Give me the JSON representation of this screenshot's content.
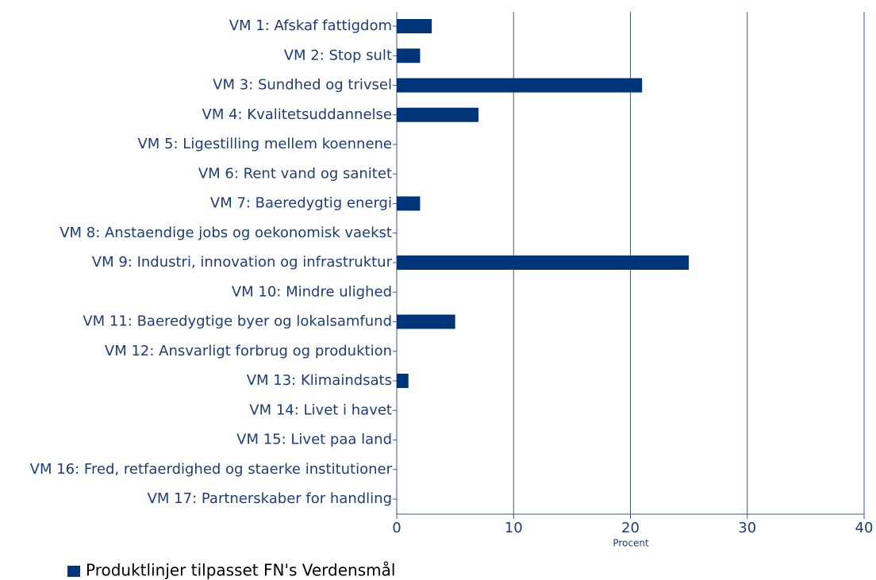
{
  "chart_data": {
    "type": "barh",
    "categories": [
      "VM 1: Afskaf fattigdom",
      "VM 2: Stop sult",
      "VM 3: Sundhed og trivsel",
      "VM 4: Kvalitetsuddannelse",
      "VM 5: Ligestilling mellem koennene",
      "VM 6: Rent vand og sanitet",
      "VM 7: Baeredygtig energi",
      "VM 8: Anstaendige jobs og oekonomisk vaekst",
      "VM 9: Industri, innovation og infrastruktur",
      "VM 10: Mindre ulighed",
      "VM 11: Baeredygtige byer og lokalsamfund",
      "VM 12: Ansvarligt forbrug og produktion",
      "VM 13: Klimaindsats",
      "VM 14: Livet i havet",
      "VM 15: Livet paa land",
      "VM 16: Fred, retfaerdighed og staerke institutioner",
      "VM 17: Partnerskaber for handling"
    ],
    "series": [
      {
        "name": "Produktlinjer tilpasset FN's Verdensmål",
        "color": "#003478",
        "values": [
          3,
          2,
          21,
          7,
          0,
          0,
          2,
          0,
          25,
          0,
          5,
          0,
          1,
          0,
          0,
          0,
          0
        ]
      }
    ],
    "xlabel": "Procent",
    "xlim": [
      0,
      40
    ],
    "xticks": [
      0,
      10,
      20,
      30,
      40
    ],
    "grid": true,
    "legend": "bottom-left"
  }
}
